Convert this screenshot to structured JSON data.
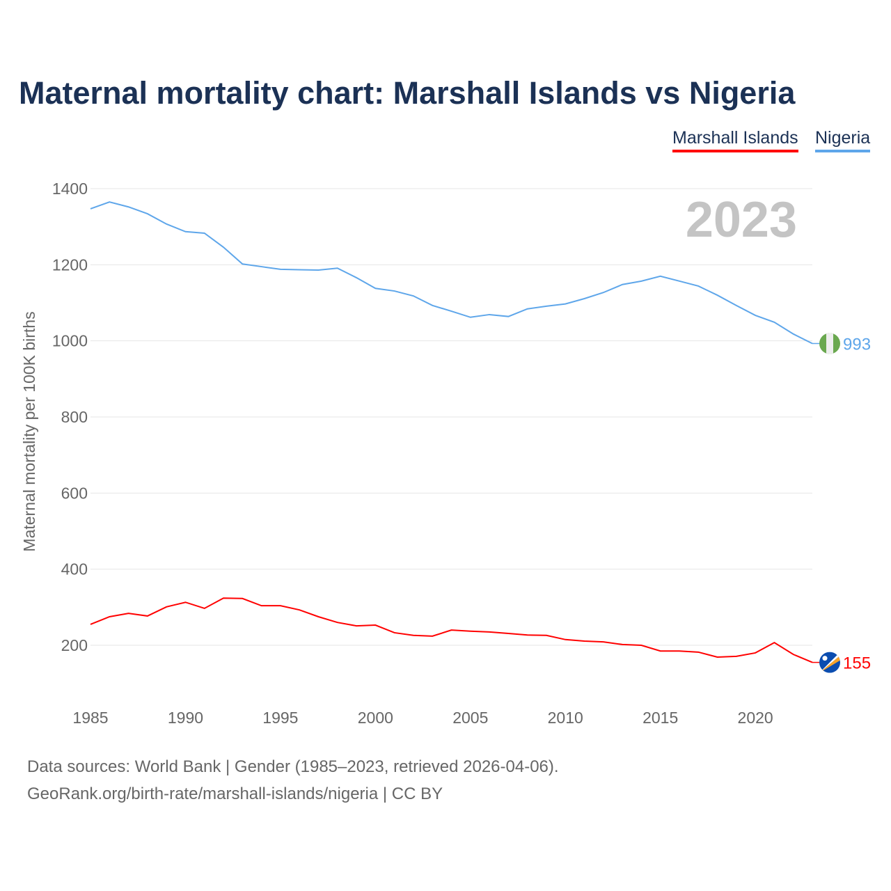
{
  "chart_data": {
    "type": "line",
    "title": "Maternal mortality chart: Marshall Islands vs Nigeria",
    "ylabel": "Maternal mortality per 100K births",
    "xlabel": "",
    "ylim": [
      70,
      1420
    ],
    "xlim": [
      1985,
      2023
    ],
    "yticks": [
      200,
      400,
      600,
      800,
      1000,
      1200,
      1400
    ],
    "xticks": [
      1985,
      1990,
      1995,
      2000,
      2005,
      2010,
      2015,
      2020
    ],
    "year_label": "2023",
    "x": [
      1985,
      1986,
      1987,
      1988,
      1989,
      1990,
      1991,
      1992,
      1993,
      1994,
      1995,
      1996,
      1997,
      1998,
      1999,
      2000,
      2001,
      2002,
      2003,
      2004,
      2005,
      2006,
      2007,
      2008,
      2009,
      2010,
      2011,
      2012,
      2013,
      2014,
      2015,
      2016,
      2017,
      2018,
      2019,
      2020,
      2021,
      2022,
      2023
    ],
    "series": [
      {
        "name": "Marshall Islands",
        "color": "#ff0000",
        "end_label": "155",
        "values": [
          255,
          275,
          284,
          277,
          301,
          313,
          297,
          324,
          323,
          304,
          304,
          293,
          275,
          260,
          251,
          253,
          233,
          226,
          224,
          240,
          237,
          235,
          231,
          227,
          226,
          215,
          211,
          209,
          202,
          200,
          185,
          185,
          182,
          169,
          171,
          180,
          207,
          176,
          155
        ]
      },
      {
        "name": "Nigeria",
        "color": "#5ea6ea",
        "end_label": "993",
        "values": [
          1347,
          1365,
          1352,
          1334,
          1307,
          1287,
          1283,
          1246,
          1202,
          1195,
          1188,
          1187,
          1186,
          1191,
          1166,
          1138,
          1131,
          1118,
          1093,
          1078,
          1062,
          1069,
          1064,
          1084,
          1091,
          1097,
          1111,
          1127,
          1148,
          1157,
          1170,
          1157,
          1144,
          1120,
          1093,
          1067,
          1049,
          1018,
          993
        ]
      }
    ]
  },
  "footer": {
    "line1": "Data sources: World Bank | Gender (1985–2023, retrieved 2026-04-06).",
    "line2": "GeoRank.org/birth-rate/marshall-islands/nigeria | CC BY"
  }
}
